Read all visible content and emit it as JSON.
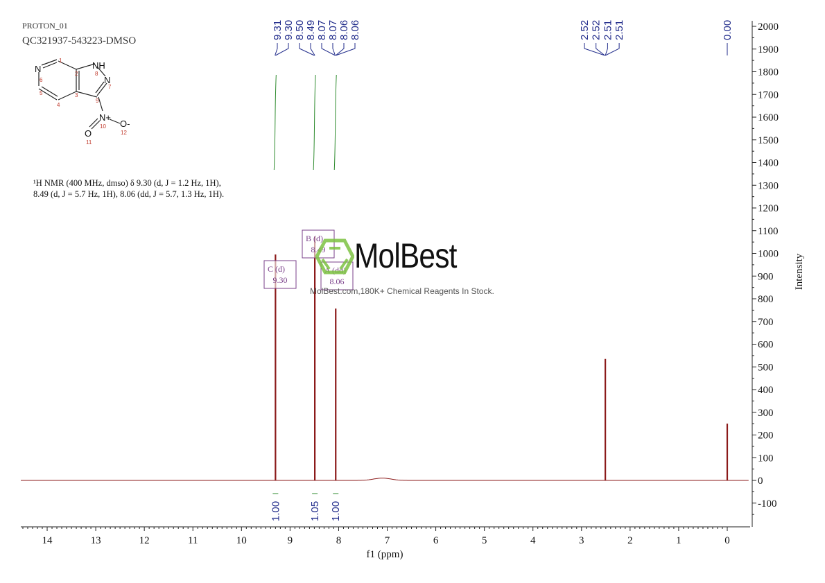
{
  "header": {
    "experiment": "PROTON_01",
    "sample": "QC321937-543223-DMSO"
  },
  "structure": {
    "atoms": [
      "N",
      "NH",
      "N",
      "N+",
      "O",
      "O-"
    ],
    "atom_numbers": [
      "1",
      "2",
      "3",
      "4",
      "5",
      "6",
      "7",
      "8",
      "9",
      "10",
      "11",
      "12"
    ]
  },
  "description": {
    "line1": "¹H NMR (400 MHz, dmso) δ 9.30 (d, J = 1.2 Hz, 1H),",
    "line2": "8.49 (d, J = 5.7 Hz, 1H), 8.06 (dd, J = 5.7, 1.3 Hz, 1H)."
  },
  "watermark": {
    "brand": "MolBest",
    "tagline": "MolBest.com,180K+ Chemical Reagents In Stock.",
    "color": "#7dc242"
  },
  "chart_data": {
    "type": "line",
    "xlabel": "f1 (ppm)",
    "ylabel": "Intensity",
    "xlim": [
      14.5,
      -0.45
    ],
    "ylim": [
      -200,
      2000
    ],
    "x_reversed": true,
    "xticks": [
      14,
      13,
      12,
      11,
      10,
      9,
      8,
      7,
      6,
      5,
      4,
      3,
      2,
      1,
      0
    ],
    "yticks": [
      2000,
      1900,
      1800,
      1700,
      1600,
      1500,
      1400,
      1300,
      1200,
      1100,
      1000,
      900,
      800,
      700,
      600,
      500,
      400,
      300,
      200,
      100,
      0,
      -100
    ],
    "peaks": [
      {
        "ppm": 9.3,
        "intensity": 995
      },
      {
        "ppm": 8.49,
        "intensity": 1075
      },
      {
        "ppm": 8.06,
        "intensity": 757
      },
      {
        "ppm": 2.51,
        "intensity": 535
      },
      {
        "ppm": 0.0,
        "intensity": 250
      }
    ],
    "peak_labels": [
      {
        "text": "9.31",
        "ppm": 9.31
      },
      {
        "text": "9.30",
        "ppm": 9.3
      },
      {
        "text": "8.50",
        "ppm": 8.5
      },
      {
        "text": "8.49",
        "ppm": 8.49
      },
      {
        "text": "8.07",
        "ppm": 8.07
      },
      {
        "text": "8.07",
        "ppm": 8.07
      },
      {
        "text": "8.06",
        "ppm": 8.06
      },
      {
        "text": "8.06",
        "ppm": 8.06
      },
      {
        "text": "2.52",
        "ppm": 2.52
      },
      {
        "text": "2.52",
        "ppm": 2.52
      },
      {
        "text": "2.51",
        "ppm": 2.51
      },
      {
        "text": "2.51",
        "ppm": 2.51
      },
      {
        "text": "0.00",
        "ppm": 0.0
      }
    ],
    "integrals": [
      {
        "ppm": 9.3,
        "value": "1.00"
      },
      {
        "ppm": 8.49,
        "value": "1.05"
      },
      {
        "ppm": 8.06,
        "value": "1.00"
      }
    ],
    "multiplets": [
      {
        "label": "C",
        "type": "(d)",
        "shift": "9.30"
      },
      {
        "label": "B",
        "type": "(d)",
        "shift": "8.49"
      },
      {
        "label": "A",
        "type": "(dd)",
        "shift": "8.06"
      }
    ],
    "colors": {
      "spectrum": "#8b1a1a",
      "labels": "#1f2a8a",
      "integral": "#2e8b2e",
      "multiplet": "#7a3f8a"
    }
  }
}
